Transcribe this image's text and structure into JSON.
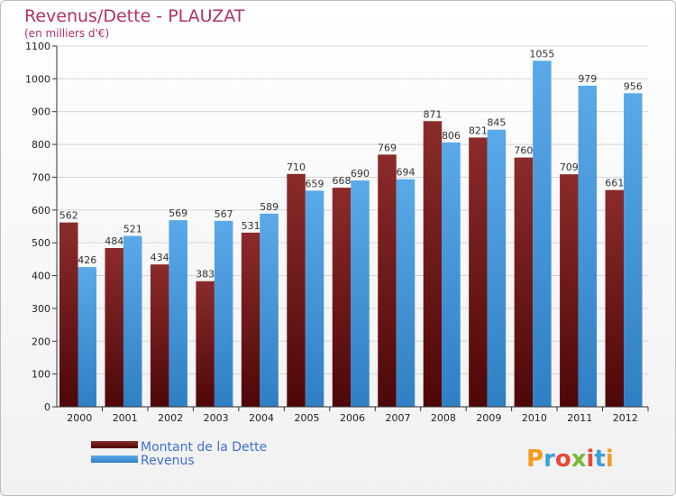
{
  "chart_data": {
    "type": "bar",
    "title": "Revenus/Dette - PLAUZAT",
    "subtitle": "(en milliers d'€)",
    "categories": [
      "2000",
      "2001",
      "2002",
      "2003",
      "2004",
      "2005",
      "2006",
      "2007",
      "2008",
      "2009",
      "2010",
      "2011",
      "2012"
    ],
    "series": [
      {
        "name": "Montant de la Dette",
        "color": "#7a1c1c",
        "values": [
          562,
          484,
          434,
          383,
          531,
          710,
          668,
          769,
          871,
          821,
          760,
          709,
          661
        ]
      },
      {
        "name": "Revenus",
        "color": "#4f9fe0",
        "values": [
          426,
          521,
          569,
          567,
          589,
          659,
          690,
          694,
          806,
          845,
          1055,
          979,
          956
        ]
      }
    ],
    "ylim": [
      0,
      1100
    ],
    "yticks": [
      0,
      100,
      200,
      300,
      400,
      500,
      600,
      700,
      800,
      900,
      1000,
      1100
    ],
    "grid": true,
    "legend_position": "bottom-left"
  },
  "logo": {
    "letters": [
      "P",
      "r",
      "o",
      "x",
      "i",
      "t",
      "i"
    ],
    "colors": [
      "#f39a1e",
      "#3aa0de",
      "#e8473a",
      "#7ab83a",
      "#e8473a",
      "#3aa0de",
      "#f39a1e"
    ]
  }
}
